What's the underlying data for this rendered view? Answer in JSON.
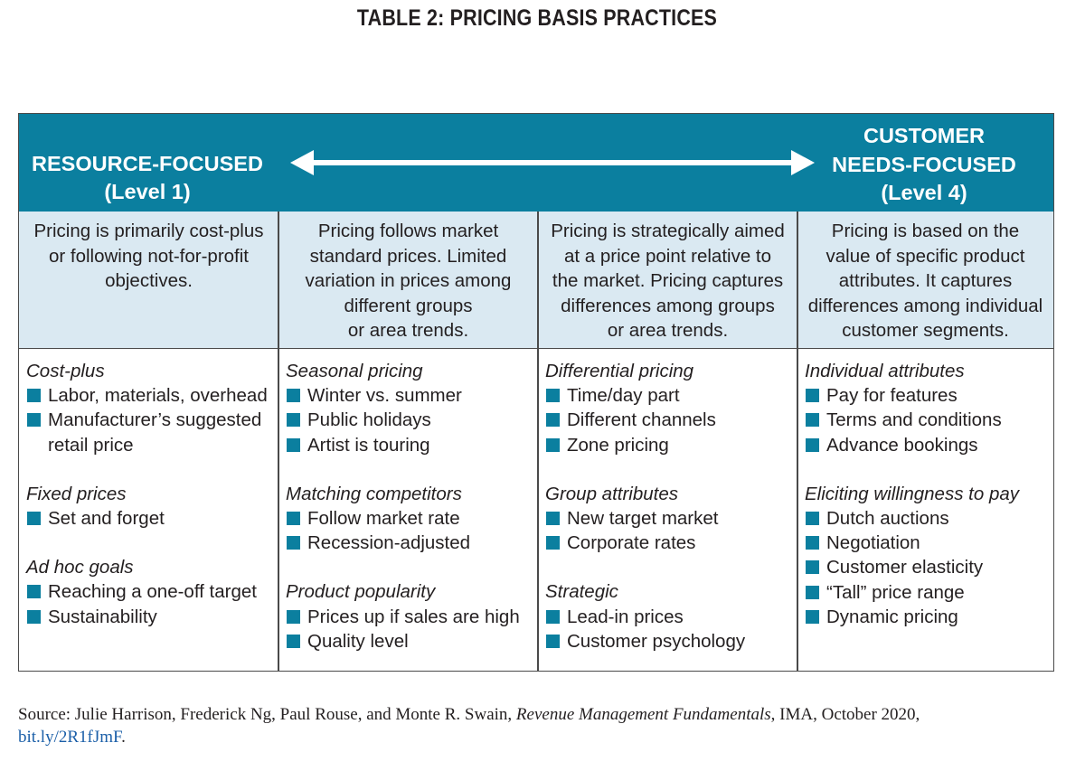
{
  "title": "TABLE 2: PRICING BASIS PRACTICES",
  "header": {
    "left_line1": "RESOURCE-FOCUSED",
    "left_line2": "(Level 1)",
    "right_line1": "CUSTOMER",
    "right_line2": "NEEDS-FOCUSED",
    "right_line3": "(Level 4)",
    "colors": {
      "header_bg": "#0b7f9f",
      "desc_bg": "#dae9f2",
      "bullet": "#0b7f9f"
    }
  },
  "descriptions": [
    [
      "Pricing is primarily cost-plus",
      "or following not-for-profit",
      "objectives."
    ],
    [
      "Pricing follows market",
      "standard prices. Limited",
      "variation in prices among",
      "different groups",
      "or area trends."
    ],
    [
      "Pricing is strategically aimed",
      "at a price point relative to",
      "the market. Pricing captures",
      "differences among groups",
      "or area trends."
    ],
    [
      "Pricing is based on the",
      "value of specific product",
      "attributes. It captures",
      "differences among individual",
      "customer segments."
    ]
  ],
  "columns": [
    {
      "groups": [
        {
          "title": "Cost-plus",
          "items": [
            "Labor, materials, overhead",
            "Manufacturer’s suggested retail price"
          ]
        },
        {
          "title": "Fixed prices",
          "items": [
            "Set and forget"
          ]
        },
        {
          "title": "Ad hoc goals",
          "items": [
            "Reaching a one-off target",
            "Sustainability"
          ]
        }
      ]
    },
    {
      "groups": [
        {
          "title": "Seasonal pricing",
          "items": [
            "Winter vs. summer",
            "Public holidays",
            "Artist is touring"
          ]
        },
        {
          "title": "Matching competitors",
          "items": [
            "Follow market rate",
            "Recession-adjusted"
          ]
        },
        {
          "title": "Product popularity",
          "items": [
            "Prices up if sales are high",
            "Quality level"
          ]
        }
      ]
    },
    {
      "groups": [
        {
          "title": "Differential pricing",
          "items": [
            "Time/day part",
            "Different channels",
            "Zone pricing"
          ]
        },
        {
          "title": "Group attributes",
          "items": [
            "New target market",
            "Corporate rates"
          ]
        },
        {
          "title": "Strategic",
          "items": [
            "Lead-in prices",
            "Customer psychology"
          ]
        }
      ]
    },
    {
      "groups": [
        {
          "title": "Individual attributes",
          "items": [
            "Pay for features",
            "Terms and conditions",
            "Advance bookings"
          ]
        },
        {
          "title": "Eliciting willingness to pay",
          "items": [
            "Dutch auctions",
            "Negotiation",
            "Customer elasticity",
            "“Tall” price range",
            "Dynamic pricing"
          ]
        }
      ]
    }
  ],
  "source": {
    "prefix": "Source: Julie Harrison, Frederick Ng, Paul Rouse, and Monte R. Swain, ",
    "book": "Revenue Management Fundamentals",
    "suffix": ", IMA, October 2020, ",
    "link": "bit.ly/2R1fJmF",
    "end": "."
  }
}
